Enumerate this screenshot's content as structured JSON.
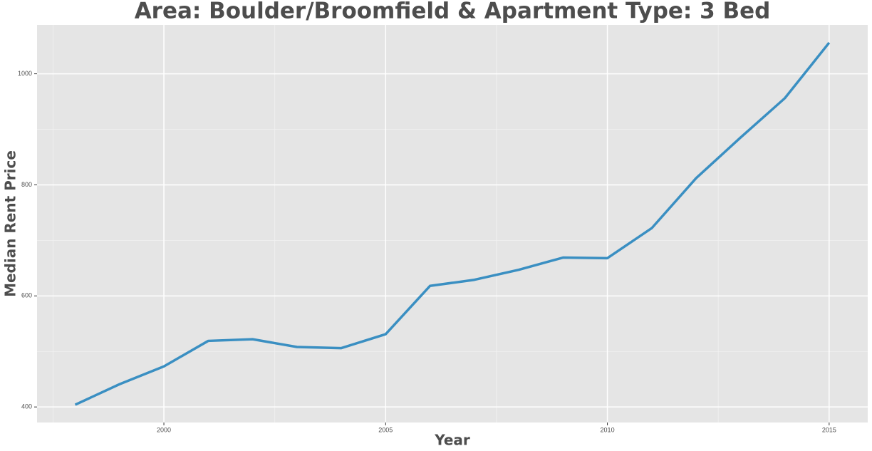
{
  "chart_data": {
    "type": "line",
    "title": "Area: Boulder/Broomfield & Apartment Type: 3 Bed",
    "x_label": "Year",
    "y_label": "Median Rent Price",
    "x": [
      1998,
      1999,
      2000,
      2001,
      2002,
      2003,
      2004,
      2005,
      2006,
      2007,
      2008,
      2009,
      2010,
      2011,
      2012,
      2013,
      2014,
      2015
    ],
    "series": [
      {
        "color": "#3a8fc2",
        "values": [
          404,
          441,
          473,
          519,
          522,
          508,
          506,
          531,
          618,
          629,
          647,
          669,
          668,
          722,
          812,
          885,
          956,
          1056
        ]
      }
    ],
    "xlim": [
      1997.14,
      2015.87
    ],
    "xticks": [
      2000,
      2005,
      2010,
      2015
    ],
    "ylim": [
      372,
      1088
    ],
    "yticks": [
      400,
      600,
      800,
      1000
    ],
    "grid": true
  }
}
